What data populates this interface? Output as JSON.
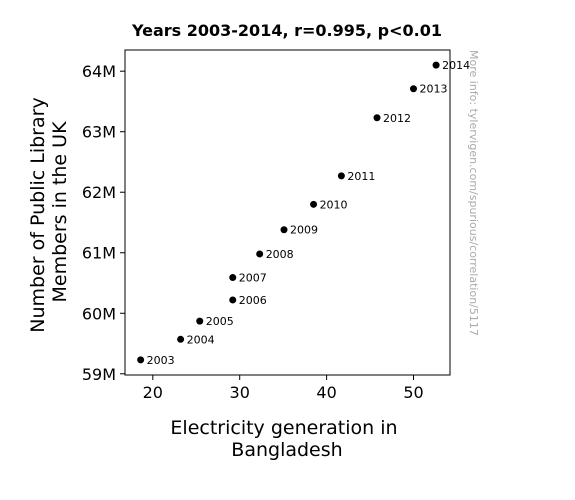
{
  "chart_data": {
    "type": "scatter",
    "title": "Years 2003-2014, r=0.995, p<0.01",
    "xlabel": [
      "Electricity generation in",
      "Bangladesh"
    ],
    "ylabel": [
      "Number of Public Library",
      "Members in the UK"
    ],
    "xlim": [
      16.8,
      54.2
    ],
    "ylim": [
      58.98,
      64.35
    ],
    "xticks": [
      20,
      30,
      40,
      50
    ],
    "yticks": [
      59,
      60,
      61,
      62,
      63,
      64
    ],
    "ytick_labels": [
      "59M",
      "60M",
      "61M",
      "62M",
      "63M",
      "64M"
    ],
    "grid": false,
    "points": [
      {
        "x": 18.6,
        "y": 59.23,
        "label": "2003"
      },
      {
        "x": 23.2,
        "y": 59.57,
        "label": "2004"
      },
      {
        "x": 25.4,
        "y": 59.87,
        "label": "2005"
      },
      {
        "x": 29.2,
        "y": 60.22,
        "label": "2006"
      },
      {
        "x": 29.2,
        "y": 60.59,
        "label": "2007"
      },
      {
        "x": 32.3,
        "y": 60.98,
        "label": "2008"
      },
      {
        "x": 35.1,
        "y": 61.38,
        "label": "2009"
      },
      {
        "x": 38.5,
        "y": 61.8,
        "label": "2010"
      },
      {
        "x": 41.7,
        "y": 62.27,
        "label": "2011"
      },
      {
        "x": 45.8,
        "y": 63.23,
        "label": "2012"
      },
      {
        "x": 50.0,
        "y": 63.71,
        "label": "2013"
      },
      {
        "x": 52.6,
        "y": 64.1,
        "label": "2014"
      }
    ],
    "point_color": "#000000"
  },
  "watermark": "More info: tylervigen.com/spurious/correlation/5117"
}
